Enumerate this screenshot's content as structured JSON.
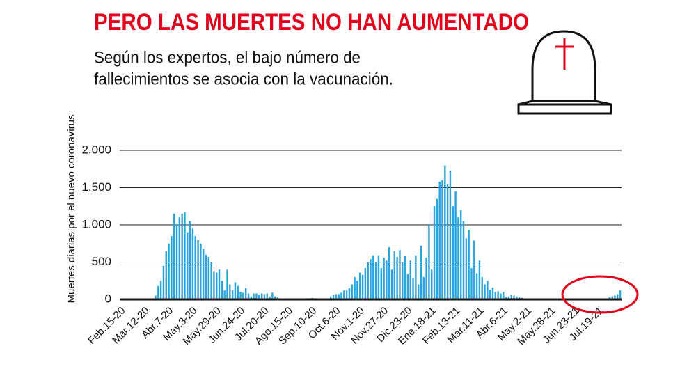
{
  "chart_data": {
    "type": "bar",
    "title": "PERO LAS MUERTES NO HAN AUMENTADO",
    "subtitle": [
      "Según los expertos, el bajo número de",
      "fallecimientos se asocia con la vacunación."
    ],
    "y_label": "Muertes diarias por el nuevo coronavirus",
    "color": "#2aa4dd",
    "ylim": [
      0,
      2000
    ],
    "yticks": [
      0,
      500,
      {
        "value": 1000,
        "label": "1.000"
      },
      {
        "value": 1500,
        "label": "1.500"
      },
      {
        "value": 2000,
        "label": "2.000"
      }
    ],
    "grid": true,
    "categories": [
      "Feb.15-20",
      null,
      null,
      null,
      null,
      null,
      null,
      null,
      null,
      "Mar.12-20",
      null,
      null,
      null,
      null,
      null,
      null,
      null,
      null,
      "Abr.7-20",
      null,
      null,
      null,
      null,
      null,
      null,
      null,
      null,
      "May.3-20",
      null,
      null,
      null,
      null,
      null,
      null,
      null,
      null,
      "May.29-20",
      null,
      null,
      null,
      null,
      null,
      null,
      null,
      null,
      "Jun.24-20",
      null,
      null,
      null,
      null,
      null,
      null,
      null,
      null,
      "Jul.20-20",
      null,
      null,
      null,
      null,
      null,
      null,
      null,
      null,
      "Ago.15-20",
      null,
      null,
      null,
      null,
      null,
      null,
      null,
      null,
      "Sep.10-20",
      null,
      null,
      null,
      null,
      null,
      null,
      null,
      null,
      "Oct.6-20",
      null,
      null,
      null,
      null,
      null,
      null,
      null,
      null,
      "Nov.1-20",
      null,
      null,
      null,
      null,
      null,
      null,
      null,
      null,
      "Nov.27-20",
      null,
      null,
      null,
      null,
      null,
      null,
      null,
      null,
      "Dic.23-20",
      null,
      null,
      null,
      null,
      null,
      null,
      null,
      null,
      "Ene.18-21",
      null,
      null,
      null,
      null,
      null,
      null,
      null,
      null,
      "Feb.13-21",
      null,
      null,
      null,
      null,
      null,
      null,
      null,
      null,
      "Mar.11-21",
      null,
      null,
      null,
      null,
      null,
      null,
      null,
      null,
      "Abr.6-21",
      null,
      null,
      null,
      null,
      null,
      null,
      null,
      null,
      "May.2-21",
      null,
      null,
      null,
      null,
      null,
      null,
      null,
      null,
      "May.28-21",
      null,
      null,
      null,
      null,
      null,
      null,
      null,
      null,
      "Jun.23-21",
      null,
      null,
      null,
      null,
      null,
      null,
      null,
      null,
      "Jul.19-21",
      null,
      null,
      null,
      null,
      null,
      null,
      null,
      null
    ],
    "values": [
      0,
      0,
      0,
      0,
      0,
      0,
      0,
      0,
      0,
      0,
      0,
      0,
      0,
      50,
      180,
      250,
      450,
      650,
      750,
      850,
      1150,
      1000,
      1100,
      1150,
      1170,
      900,
      1050,
      950,
      850,
      800,
      750,
      680,
      600,
      570,
      500,
      380,
      360,
      400,
      250,
      120,
      400,
      200,
      120,
      230,
      180,
      100,
      90,
      150,
      80,
      40,
      80,
      80,
      60,
      80,
      70,
      80,
      40,
      90,
      40,
      30,
      0,
      0,
      0,
      0,
      0,
      0,
      0,
      0,
      0,
      0,
      0,
      0,
      20,
      0,
      0,
      0,
      0,
      0,
      0,
      40,
      60,
      70,
      70,
      90,
      120,
      120,
      150,
      200,
      300,
      250,
      360,
      330,
      420,
      500,
      540,
      590,
      500,
      590,
      420,
      560,
      520,
      700,
      400,
      650,
      570,
      660,
      500,
      580,
      340,
      520,
      280,
      590,
      200,
      720,
      300,
      560,
      1000,
      400,
      1250,
      1350,
      1580,
      1600,
      1800,
      1550,
      1730,
      1250,
      1450,
      1100,
      1200,
      1050,
      820,
      930,
      420,
      790,
      350,
      520,
      300,
      200,
      250,
      130,
      160,
      100,
      110,
      80,
      100,
      30,
      40,
      60,
      50,
      40,
      30,
      20,
      0,
      0,
      0,
      0,
      0,
      0,
      0,
      0,
      0,
      0,
      0,
      0,
      0,
      0,
      0,
      0,
      0,
      0,
      0,
      0,
      0,
      0,
      0,
      0,
      0,
      0,
      0,
      0,
      0,
      0,
      0,
      0,
      30,
      40,
      50,
      70,
      120
    ]
  }
}
